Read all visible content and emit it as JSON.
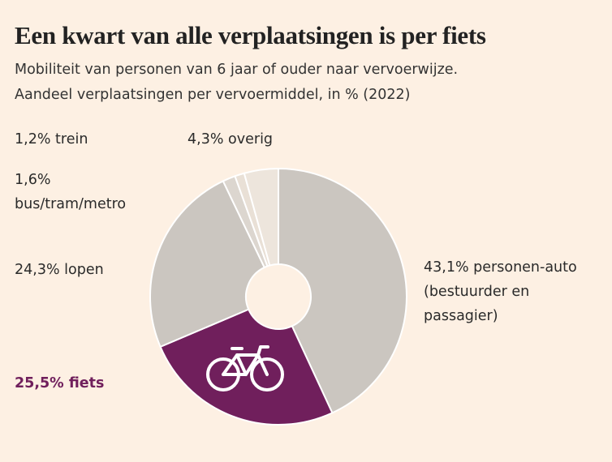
{
  "chart_data": {
    "type": "pie",
    "title": "Een kwart van alle verplaatsingen is per fiets",
    "subtitle": [
      "Mobiliteit van personen van 6 jaar of ouder naar vervoerwijze.",
      "Aandeel verplaatsingen per vervoermiddel, in % (2022)"
    ],
    "categories": [
      "personen-auto (bestuurder en passagier)",
      "fiets",
      "lopen",
      "bus/tram/metro",
      "trein",
      "overig"
    ],
    "values": [
      43.1,
      25.5,
      24.3,
      1.6,
      1.2,
      4.3
    ],
    "value_labels": [
      "43,1%",
      "25,5%",
      "24,3%",
      "1,6%",
      "1,2%",
      "4,3%"
    ],
    "colors": [
      "#cbc6c0",
      "#701f5c",
      "#cbc6c0",
      "#dcd6cf",
      "#e9e0d6",
      "#ede5dc"
    ],
    "highlight": 1
  }
}
